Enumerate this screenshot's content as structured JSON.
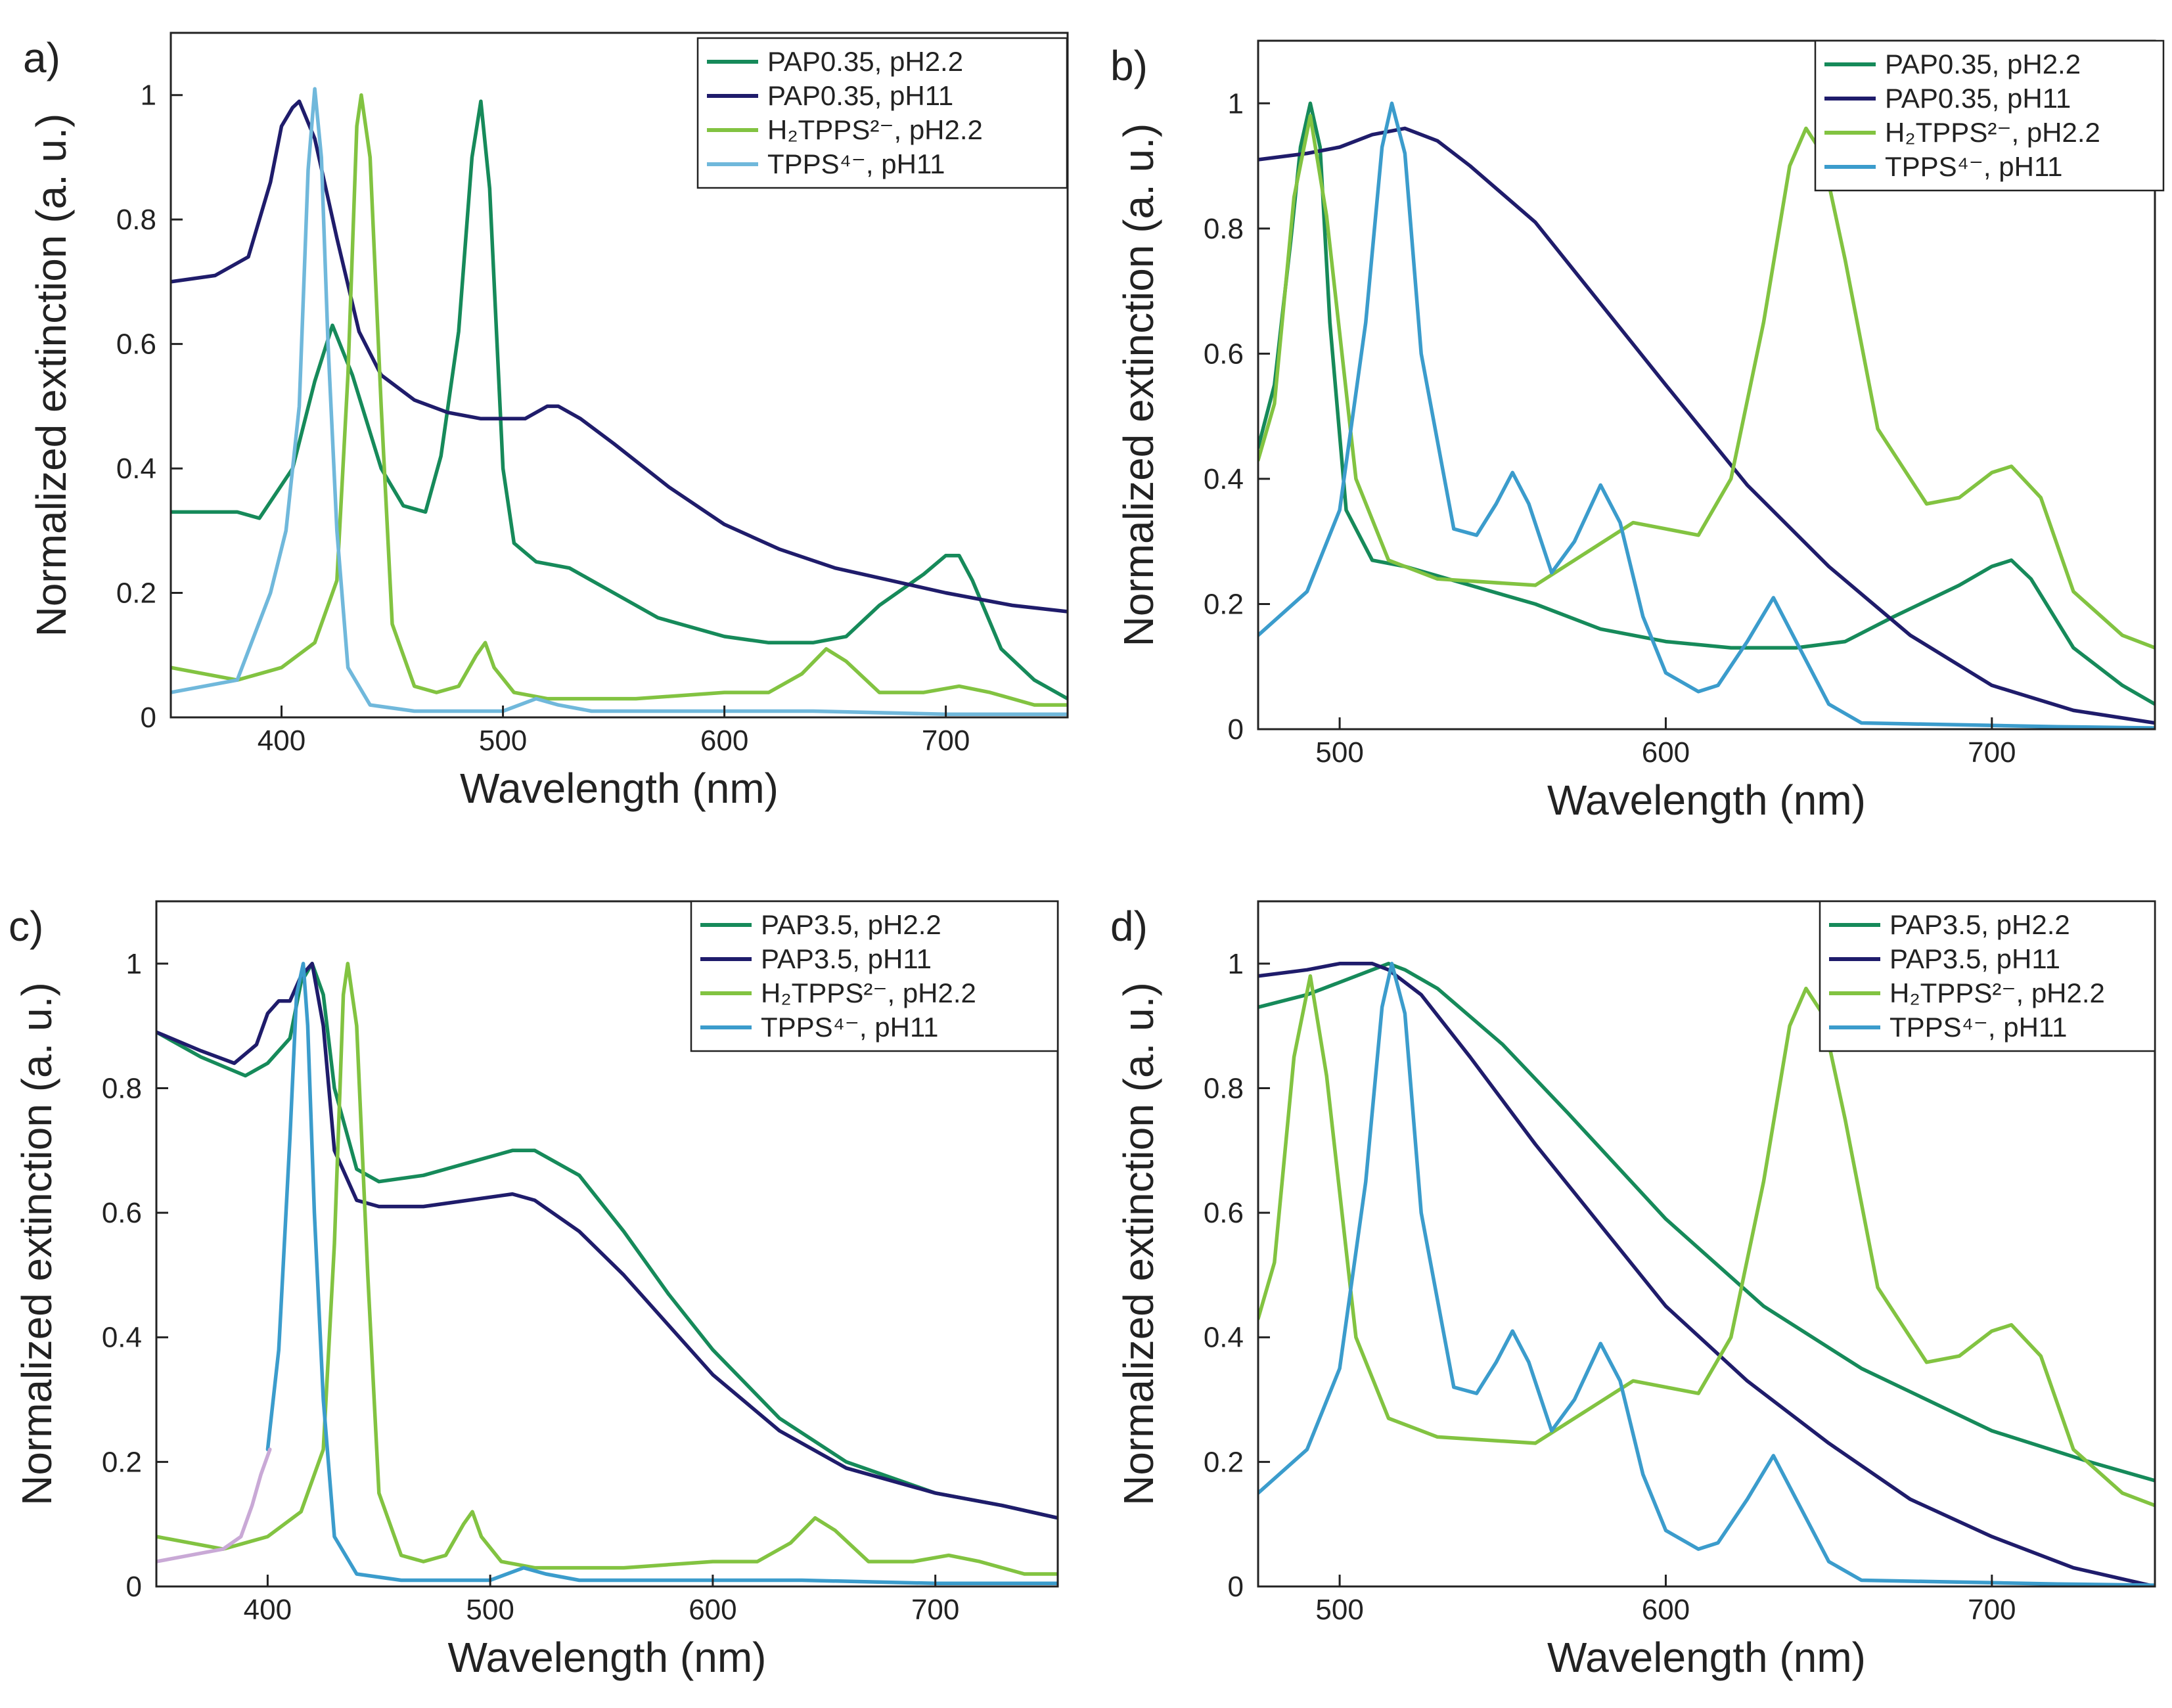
{
  "chart_data": [
    {
      "panel": "a)",
      "type": "line",
      "xlabel": "Wavelength (nm)",
      "ylabel": "Normalized extinction (a. u.)",
      "xlim": [
        350,
        755
      ],
      "ylim": [
        0,
        1.1
      ],
      "xticks": [
        400,
        500,
        600,
        700
      ],
      "yticks": [
        0,
        0.2,
        0.4,
        0.6,
        0.8,
        1
      ],
      "ytick_labels": [
        "0",
        "0.2",
        "0.4",
        "0.6",
        "0.8",
        "1"
      ],
      "legend_position": "top-right",
      "series": [
        {
          "name": "PAP0.35, pH2.2",
          "color": "#168a5a",
          "x": [
            350,
            380,
            390,
            405,
            415,
            423,
            432,
            445,
            455,
            465,
            472,
            480,
            486,
            490,
            494,
            500,
            505,
            515,
            530,
            550,
            570,
            600,
            620,
            640,
            655,
            670,
            690,
            700,
            706,
            712,
            725,
            740,
            755
          ],
          "y": [
            0.33,
            0.33,
            0.32,
            0.4,
            0.54,
            0.63,
            0.55,
            0.4,
            0.34,
            0.33,
            0.42,
            0.62,
            0.9,
            0.99,
            0.85,
            0.4,
            0.28,
            0.25,
            0.24,
            0.2,
            0.16,
            0.13,
            0.12,
            0.12,
            0.13,
            0.18,
            0.23,
            0.26,
            0.26,
            0.22,
            0.11,
            0.06,
            0.03
          ]
        },
        {
          "name": "PAP0.35, pH11",
          "color": "#1f1c6b",
          "x": [
            350,
            370,
            385,
            395,
            400,
            405,
            408,
            415,
            425,
            435,
            445,
            460,
            475,
            490,
            500,
            510,
            520,
            525,
            535,
            550,
            575,
            600,
            625,
            650,
            675,
            700,
            730,
            755
          ],
          "y": [
            0.7,
            0.71,
            0.74,
            0.86,
            0.95,
            0.98,
            0.99,
            0.93,
            0.77,
            0.62,
            0.55,
            0.51,
            0.49,
            0.48,
            0.48,
            0.48,
            0.5,
            0.5,
            0.48,
            0.44,
            0.37,
            0.31,
            0.27,
            0.24,
            0.22,
            0.2,
            0.18,
            0.17
          ]
        },
        {
          "name": "H₂TPPS²⁻, pH2.2",
          "color": "#82c341",
          "x": [
            350,
            380,
            400,
            415,
            425,
            430,
            434,
            436,
            440,
            445,
            450,
            460,
            470,
            480,
            488,
            492,
            496,
            505,
            520,
            560,
            600,
            620,
            635,
            646,
            655,
            670,
            690,
            706,
            720,
            740,
            755
          ],
          "y": [
            0.08,
            0.06,
            0.08,
            0.12,
            0.22,
            0.55,
            0.95,
            1.0,
            0.9,
            0.5,
            0.15,
            0.05,
            0.04,
            0.05,
            0.1,
            0.12,
            0.08,
            0.04,
            0.03,
            0.03,
            0.04,
            0.04,
            0.07,
            0.11,
            0.09,
            0.04,
            0.04,
            0.05,
            0.04,
            0.02,
            0.02
          ]
        },
        {
          "name": "TPPS⁴⁻, pH11",
          "color": "#70b8db",
          "x": [
            350,
            380,
            395,
            402,
            408,
            412,
            415,
            418,
            421,
            425,
            430,
            440,
            460,
            500,
            515,
            525,
            540,
            560,
            580,
            600,
            640,
            700,
            755
          ],
          "y": [
            0.04,
            0.06,
            0.2,
            0.3,
            0.5,
            0.88,
            1.01,
            0.9,
            0.6,
            0.3,
            0.08,
            0.02,
            0.01,
            0.01,
            0.03,
            0.02,
            0.01,
            0.01,
            0.01,
            0.01,
            0.01,
            0.005,
            0.005
          ]
        }
      ]
    },
    {
      "panel": "b)",
      "type": "line",
      "xlabel": "Wavelength (nm)",
      "ylabel": "Normalized extinction (a. u.)",
      "xlim": [
        475,
        750
      ],
      "ylim": [
        0,
        1.1
      ],
      "xticks": [
        500,
        600,
        700
      ],
      "yticks": [
        0,
        0.2,
        0.4,
        0.6,
        0.8,
        1
      ],
      "ytick_labels": [
        "0",
        "0.2",
        "0.4",
        "0.6",
        "0.8",
        "1"
      ],
      "legend_position": "top-right",
      "series": [
        {
          "name": "PAP0.35, pH2.2",
          "color": "#168a5a",
          "x": [
            475,
            480,
            485,
            488,
            491,
            494,
            497,
            502,
            510,
            520,
            540,
            560,
            580,
            600,
            620,
            640,
            655,
            670,
            690,
            700,
            706,
            712,
            725,
            740,
            750
          ],
          "y": [
            0.45,
            0.55,
            0.78,
            0.93,
            1.0,
            0.93,
            0.65,
            0.35,
            0.27,
            0.26,
            0.23,
            0.2,
            0.16,
            0.14,
            0.13,
            0.13,
            0.14,
            0.18,
            0.23,
            0.26,
            0.27,
            0.24,
            0.13,
            0.07,
            0.04
          ]
        },
        {
          "name": "PAP0.35, pH11",
          "color": "#1f1c6b",
          "x": [
            475,
            490,
            500,
            510,
            520,
            530,
            540,
            560,
            580,
            600,
            625,
            650,
            675,
            700,
            725,
            750
          ],
          "y": [
            0.91,
            0.92,
            0.93,
            0.95,
            0.96,
            0.94,
            0.9,
            0.81,
            0.68,
            0.55,
            0.39,
            0.26,
            0.15,
            0.07,
            0.03,
            0.01
          ]
        },
        {
          "name": "H₂TPPS²⁻, pH2.2",
          "color": "#82c341",
          "x": [
            475,
            480,
            486,
            491,
            496,
            505,
            515,
            530,
            560,
            575,
            590,
            600,
            610,
            620,
            630,
            638,
            643,
            648,
            655,
            665,
            680,
            690,
            700,
            706,
            715,
            725,
            740,
            750
          ],
          "y": [
            0.43,
            0.52,
            0.85,
            0.98,
            0.82,
            0.4,
            0.27,
            0.24,
            0.23,
            0.28,
            0.33,
            0.32,
            0.31,
            0.4,
            0.65,
            0.9,
            0.96,
            0.92,
            0.75,
            0.48,
            0.36,
            0.37,
            0.41,
            0.42,
            0.37,
            0.22,
            0.15,
            0.13
          ]
        },
        {
          "name": "TPPS⁴⁻, pH11",
          "color": "#3b9ccc",
          "x": [
            475,
            490,
            500,
            508,
            513,
            516,
            520,
            525,
            535,
            542,
            548,
            553,
            558,
            565,
            572,
            580,
            586,
            593,
            600,
            610,
            616,
            625,
            633,
            640,
            650,
            660,
            680,
            700,
            720,
            750
          ],
          "y": [
            0.15,
            0.22,
            0.35,
            0.65,
            0.93,
            1.0,
            0.92,
            0.6,
            0.32,
            0.31,
            0.36,
            0.41,
            0.36,
            0.25,
            0.3,
            0.39,
            0.33,
            0.18,
            0.09,
            0.06,
            0.07,
            0.14,
            0.21,
            0.14,
            0.04,
            0.01,
            0.008,
            0.006,
            0.004,
            0.002
          ]
        }
      ]
    },
    {
      "panel": "c)",
      "type": "line",
      "xlabel": "Wavelength (nm)",
      "ylabel": "Normalized extinction (a. u.)",
      "xlim": [
        350,
        755
      ],
      "ylim": [
        0,
        1.1
      ],
      "xticks": [
        400,
        500,
        600,
        700
      ],
      "yticks": [
        0,
        0.2,
        0.4,
        0.6,
        0.8,
        1
      ],
      "ytick_labels": [
        "0",
        "0.2",
        "0.4",
        "0.6",
        "0.8",
        "1"
      ],
      "legend_position": "top-right",
      "series": [
        {
          "name": "PAP3.5, pH2.2",
          "color": "#168a5a",
          "x": [
            350,
            370,
            390,
            400,
            410,
            415,
            420,
            425,
            430,
            440,
            450,
            470,
            490,
            510,
            520,
            540,
            560,
            580,
            600,
            630,
            660,
            700,
            730,
            755
          ],
          "y": [
            0.89,
            0.85,
            0.82,
            0.84,
            0.88,
            0.97,
            1.0,
            0.95,
            0.8,
            0.67,
            0.65,
            0.66,
            0.68,
            0.7,
            0.7,
            0.66,
            0.57,
            0.47,
            0.38,
            0.27,
            0.2,
            0.15,
            0.13,
            0.11
          ]
        },
        {
          "name": "PAP3.5, pH11",
          "color": "#1f1c6b",
          "x": [
            350,
            370,
            385,
            395,
            400,
            405,
            410,
            415,
            420,
            425,
            430,
            440,
            450,
            470,
            490,
            510,
            520,
            540,
            560,
            580,
            600,
            630,
            660,
            700,
            730,
            755
          ],
          "y": [
            0.89,
            0.86,
            0.84,
            0.87,
            0.92,
            0.94,
            0.94,
            0.98,
            1.0,
            0.9,
            0.7,
            0.62,
            0.61,
            0.61,
            0.62,
            0.63,
            0.62,
            0.57,
            0.5,
            0.42,
            0.34,
            0.25,
            0.19,
            0.15,
            0.13,
            0.11
          ]
        },
        {
          "name": "H₂TPPS²⁻, pH2.2",
          "color": "#82c341",
          "x": [
            350,
            380,
            400,
            415,
            425,
            430,
            434,
            436,
            440,
            445,
            450,
            460,
            470,
            480,
            488,
            492,
            496,
            505,
            520,
            560,
            600,
            620,
            635,
            646,
            655,
            670,
            690,
            706,
            720,
            740,
            755
          ],
          "y": [
            0.08,
            0.06,
            0.08,
            0.12,
            0.22,
            0.55,
            0.95,
            1.0,
            0.9,
            0.5,
            0.15,
            0.05,
            0.04,
            0.05,
            0.1,
            0.12,
            0.08,
            0.04,
            0.03,
            0.03,
            0.04,
            0.04,
            0.07,
            0.11,
            0.09,
            0.04,
            0.04,
            0.05,
            0.04,
            0.02,
            0.02
          ]
        },
        {
          "name": "TPPS⁴⁻, pH11",
          "color": "#3b9ccc",
          "x": [
            400,
            405,
            410,
            413,
            416,
            418,
            421,
            425,
            430,
            440,
            460,
            500,
            515,
            525,
            540,
            560,
            580,
            600,
            640,
            700,
            755
          ],
          "y": [
            0.22,
            0.38,
            0.72,
            0.95,
            1.0,
            0.9,
            0.6,
            0.3,
            0.08,
            0.02,
            0.01,
            0.01,
            0.03,
            0.02,
            0.01,
            0.01,
            0.01,
            0.01,
            0.01,
            0.005,
            0.005
          ]
        },
        {
          "name": "",
          "color": "#c9a9d6",
          "x": [
            350,
            365,
            380,
            388,
            393,
            397,
            401
          ],
          "y": [
            0.04,
            0.05,
            0.06,
            0.08,
            0.13,
            0.18,
            0.22
          ]
        }
      ]
    },
    {
      "panel": "d)",
      "type": "line",
      "xlabel": "Wavelength (nm)",
      "ylabel": "Normalized extinction (a. u.)",
      "xlim": [
        475,
        750
      ],
      "ylim": [
        0,
        1.1
      ],
      "xticks": [
        500,
        600,
        700
      ],
      "yticks": [
        0,
        0.2,
        0.4,
        0.6,
        0.8,
        1
      ],
      "ytick_labels": [
        "0",
        "0.2",
        "0.4",
        "0.6",
        "0.8",
        "1"
      ],
      "legend_position": "top-right",
      "series": [
        {
          "name": "PAP3.5, pH2.2",
          "color": "#168a5a",
          "x": [
            475,
            490,
            500,
            510,
            515,
            520,
            530,
            550,
            570,
            600,
            630,
            660,
            700,
            730,
            750
          ],
          "y": [
            0.93,
            0.95,
            0.97,
            0.99,
            1.0,
            0.99,
            0.96,
            0.87,
            0.76,
            0.59,
            0.45,
            0.35,
            0.25,
            0.2,
            0.17
          ]
        },
        {
          "name": "PAP3.5, pH11",
          "color": "#1f1c6b",
          "x": [
            475,
            490,
            500,
            510,
            515,
            525,
            540,
            560,
            580,
            600,
            625,
            650,
            675,
            700,
            725,
            750
          ],
          "y": [
            0.98,
            0.99,
            1.0,
            1.0,
            0.99,
            0.95,
            0.85,
            0.71,
            0.58,
            0.45,
            0.33,
            0.23,
            0.14,
            0.08,
            0.03,
            0.0
          ]
        },
        {
          "name": "H₂TPPS²⁻, pH2.2",
          "color": "#82c341",
          "x": [
            475,
            480,
            486,
            491,
            496,
            505,
            515,
            530,
            560,
            575,
            590,
            600,
            610,
            620,
            630,
            638,
            643,
            648,
            655,
            665,
            680,
            690,
            700,
            706,
            715,
            725,
            740,
            750
          ],
          "y": [
            0.43,
            0.52,
            0.85,
            0.98,
            0.82,
            0.4,
            0.27,
            0.24,
            0.23,
            0.28,
            0.33,
            0.32,
            0.31,
            0.4,
            0.65,
            0.9,
            0.96,
            0.92,
            0.75,
            0.48,
            0.36,
            0.37,
            0.41,
            0.42,
            0.37,
            0.22,
            0.15,
            0.13
          ]
        },
        {
          "name": "TPPS⁴⁻, pH11",
          "color": "#3b9ccc",
          "x": [
            475,
            490,
            500,
            508,
            513,
            516,
            520,
            525,
            535,
            542,
            548,
            553,
            558,
            565,
            572,
            580,
            586,
            593,
            600,
            610,
            616,
            625,
            633,
            640,
            650,
            660,
            680,
            700,
            720,
            750
          ],
          "y": [
            0.15,
            0.22,
            0.35,
            0.65,
            0.93,
            1.0,
            0.92,
            0.6,
            0.32,
            0.31,
            0.36,
            0.41,
            0.36,
            0.25,
            0.3,
            0.39,
            0.33,
            0.18,
            0.09,
            0.06,
            0.07,
            0.14,
            0.21,
            0.14,
            0.04,
            0.01,
            0.008,
            0.006,
            0.004,
            0.002
          ]
        }
      ]
    }
  ]
}
